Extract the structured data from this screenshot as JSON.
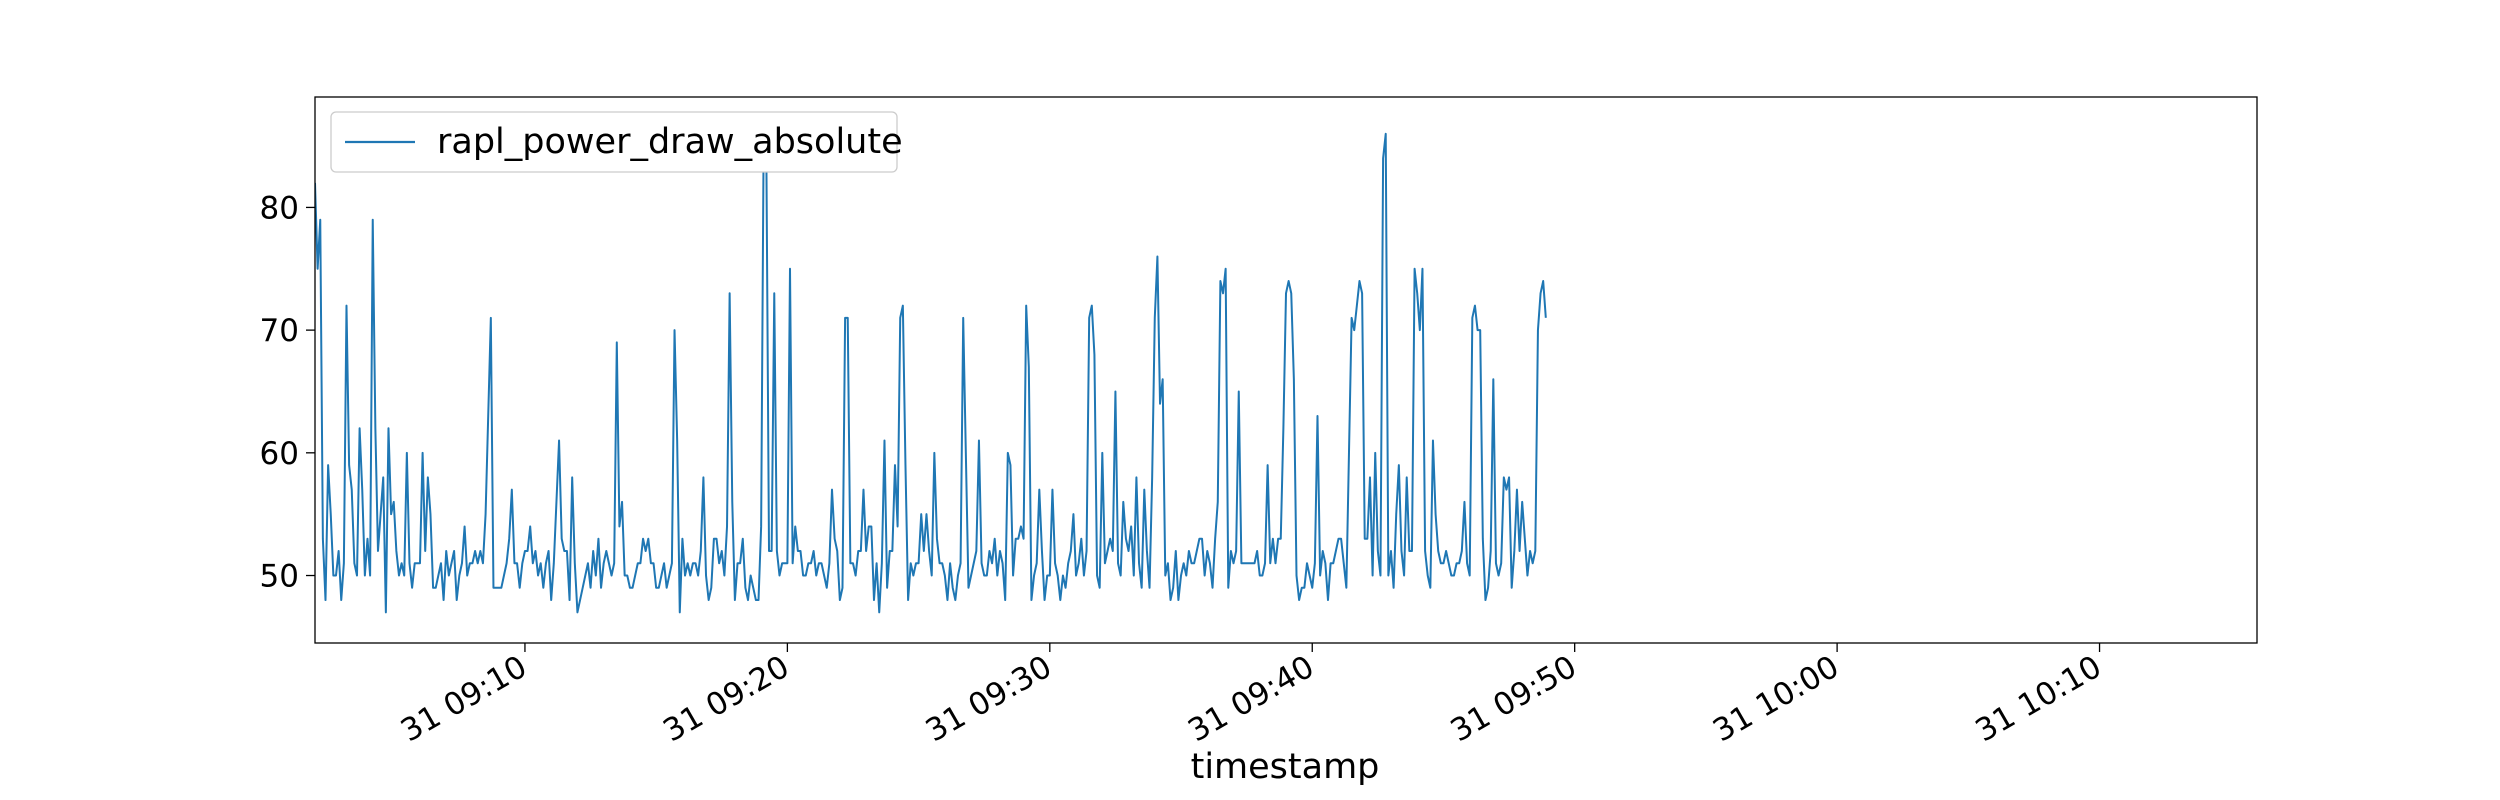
{
  "chart_data": {
    "type": "line",
    "xlabel": "timestamp",
    "ylabel": "",
    "title": "",
    "grid": false,
    "legend_position": "top-left",
    "x_start": "31 09:02:00",
    "x_step_seconds": 6,
    "xlim": [
      "31 09:02:00",
      "31 10:16:00"
    ],
    "ylim": [
      44.5,
      89.0
    ],
    "x_ticks": [
      {
        "t": "31 09:10:00",
        "label": "31 09:10"
      },
      {
        "t": "31 09:20:00",
        "label": "31 09:20"
      },
      {
        "t": "31 09:30:00",
        "label": "31 09:30"
      },
      {
        "t": "31 09:40:00",
        "label": "31 09:40"
      },
      {
        "t": "31 09:50:00",
        "label": "31 09:50"
      },
      {
        "t": "31 10:00:00",
        "label": "31 10:00"
      },
      {
        "t": "31 10:10:00",
        "label": "31 10:10"
      }
    ],
    "y_ticks": [
      {
        "v": 50,
        "label": "50"
      },
      {
        "v": 60,
        "label": "60"
      },
      {
        "v": 70,
        "label": "70"
      },
      {
        "v": 80,
        "label": "80"
      }
    ],
    "series": [
      {
        "name": "rapl_power_draw_absolute",
        "color": "#1f77b4",
        "values": [
          82,
          75,
          79,
          53,
          48,
          59,
          55,
          50,
          50,
          52,
          48,
          51,
          72,
          59,
          57,
          51,
          50,
          62,
          57,
          50,
          53,
          50,
          79,
          62,
          52,
          55,
          58,
          47,
          62,
          55,
          56,
          52,
          50,
          51,
          50,
          60,
          51,
          49,
          51,
          51,
          51,
          60,
          52,
          58,
          55,
          49,
          49,
          50,
          51,
          48,
          52,
          50,
          51,
          52,
          48,
          50,
          51,
          54,
          50,
          51,
          51,
          52,
          51,
          52,
          51,
          55,
          63,
          71,
          49,
          49,
          49,
          49,
          50,
          51,
          53,
          57,
          51,
          51,
          49,
          51,
          52,
          52,
          54,
          51,
          52,
          50,
          51,
          49,
          51,
          52,
          48,
          51,
          56,
          61,
          53,
          52,
          52,
          48,
          58,
          51,
          47,
          48,
          49,
          50,
          51,
          49,
          52,
          50,
          53,
          49,
          51,
          52,
          51,
          50,
          51,
          69,
          54,
          56,
          50,
          50,
          49,
          49,
          50,
          51,
          51,
          53,
          52,
          53,
          51,
          51,
          49,
          49,
          50,
          51,
          49,
          50,
          51,
          70,
          61,
          47,
          53,
          50,
          51,
          50,
          51,
          51,
          50,
          52,
          58,
          50,
          48,
          49,
          53,
          53,
          51,
          52,
          50,
          54,
          73,
          56,
          48,
          51,
          51,
          53,
          49,
          48,
          50,
          49,
          48,
          48,
          54,
          87,
          84,
          52,
          52,
          73,
          52,
          50,
          51,
          51,
          51,
          75,
          51,
          54,
          52,
          52,
          50,
          50,
          51,
          51,
          52,
          50,
          51,
          51,
          50,
          49,
          51,
          57,
          53,
          52,
          48,
          49,
          71,
          71,
          51,
          51,
          50,
          52,
          52,
          57,
          52,
          54,
          54,
          48,
          51,
          47,
          51,
          61,
          49,
          52,
          52,
          59,
          54,
          71,
          72,
          59,
          48,
          51,
          50,
          51,
          51,
          55,
          52,
          55,
          52,
          50,
          60,
          53,
          51,
          51,
          50,
          48,
          51,
          49,
          48,
          50,
          51,
          71,
          60,
          49,
          50,
          51,
          52,
          61,
          51,
          50,
          50,
          52,
          51,
          53,
          50,
          52,
          51,
          48,
          60,
          59,
          50,
          53,
          53,
          54,
          53,
          72,
          67,
          48,
          50,
          51,
          57,
          52,
          48,
          50,
          50,
          57,
          51,
          50,
          48,
          50,
          49,
          51,
          52,
          55,
          50,
          51,
          53,
          50,
          52,
          71,
          72,
          68,
          50,
          49,
          60,
          51,
          52,
          53,
          52,
          65,
          51,
          50,
          56,
          53,
          52,
          54,
          50,
          58,
          51,
          49,
          57,
          52,
          49,
          58,
          71,
          76,
          64,
          66,
          50,
          51,
          48,
          49,
          52,
          48,
          50,
          51,
          50,
          52,
          51,
          51,
          52,
          53,
          53,
          50,
          52,
          51,
          49,
          53,
          56,
          74,
          73,
          75,
          49,
          52,
          51,
          52,
          65,
          51,
          51,
          51,
          51,
          51,
          51,
          52,
          50,
          50,
          51,
          59,
          51,
          53,
          51,
          53,
          53,
          62,
          73,
          74,
          73,
          66,
          50,
          48,
          49,
          49,
          51,
          50,
          49,
          51,
          63,
          50,
          52,
          51,
          48,
          51,
          51,
          52,
          53,
          53,
          51,
          49,
          60,
          71,
          70,
          72,
          74,
          73,
          53,
          53,
          58,
          50,
          60,
          52,
          50,
          84,
          86,
          50,
          52,
          49,
          55,
          59,
          52,
          50,
          58,
          52,
          52,
          75,
          73,
          70,
          75,
          52,
          50,
          49,
          61,
          55,
          52,
          51,
          51,
          52,
          51,
          50,
          50,
          51,
          51,
          52,
          56,
          51,
          50,
          71,
          72,
          70,
          70,
          53,
          48,
          49,
          52,
          66,
          51,
          50,
          51,
          58,
          57,
          58,
          49,
          52,
          57,
          52,
          56,
          53,
          50,
          52,
          51,
          52,
          70,
          73,
          74,
          71
        ]
      }
    ]
  }
}
